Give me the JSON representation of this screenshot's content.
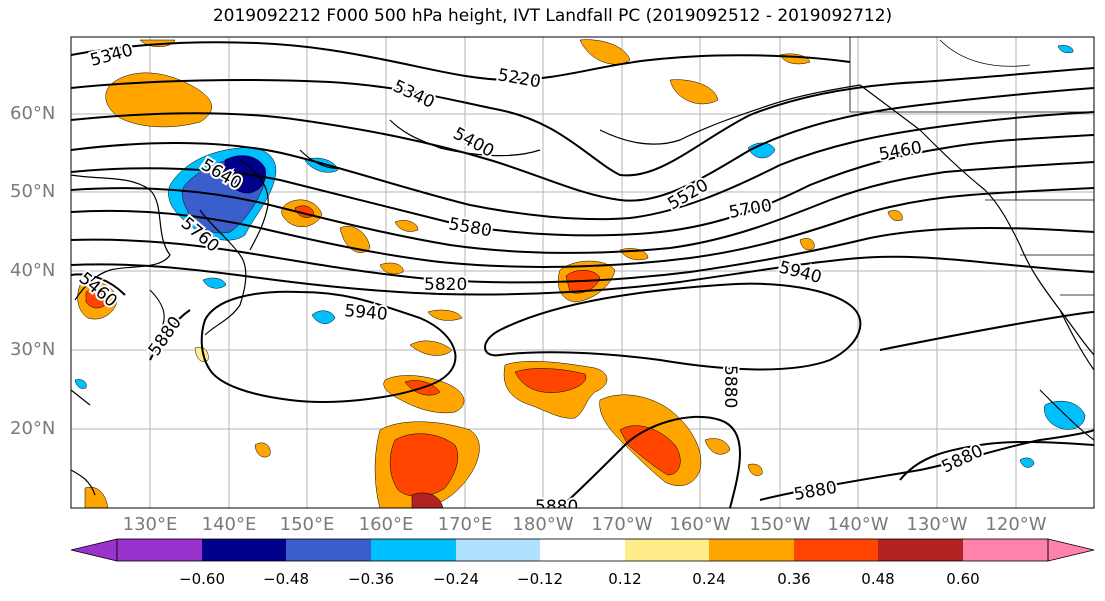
{
  "title": "2019092212 F000 500 hPa height, IVT Landfall PC (2019092512 - 2019092712)",
  "lat_labels": [
    "60°N",
    "50°N",
    "40°N",
    "30°N",
    "20°N"
  ],
  "lon_labels": [
    "130°E",
    "140°E",
    "150°E",
    "160°E",
    "170°E",
    "180°W",
    "170°W",
    "160°W",
    "150°W",
    "140°W",
    "130°W",
    "120°W"
  ],
  "contour_labels": [
    "5340",
    "5220",
    "5340",
    "5400",
    "5460",
    "5520",
    "5580",
    "5640",
    "5700",
    "5760",
    "5820",
    "5880",
    "5940",
    "5880",
    "5940",
    "5880",
    "5880",
    "5880",
    "5880",
    "5760",
    "5460"
  ],
  "colorbar": {
    "ticks": [
      "−0.60",
      "−0.48",
      "−0.36",
      "−0.24",
      "−0.12",
      "0.12",
      "0.24",
      "0.36",
      "0.48",
      "0.60"
    ],
    "colors": [
      "#9a32cd",
      "#00008b",
      "#3a5fcd",
      "#00bfff",
      "#b0e2ff",
      "#ffffff",
      "#ffec8b",
      "#ffa500",
      "#ff4500",
      "#b22222",
      "#ff82ab"
    ]
  }
}
